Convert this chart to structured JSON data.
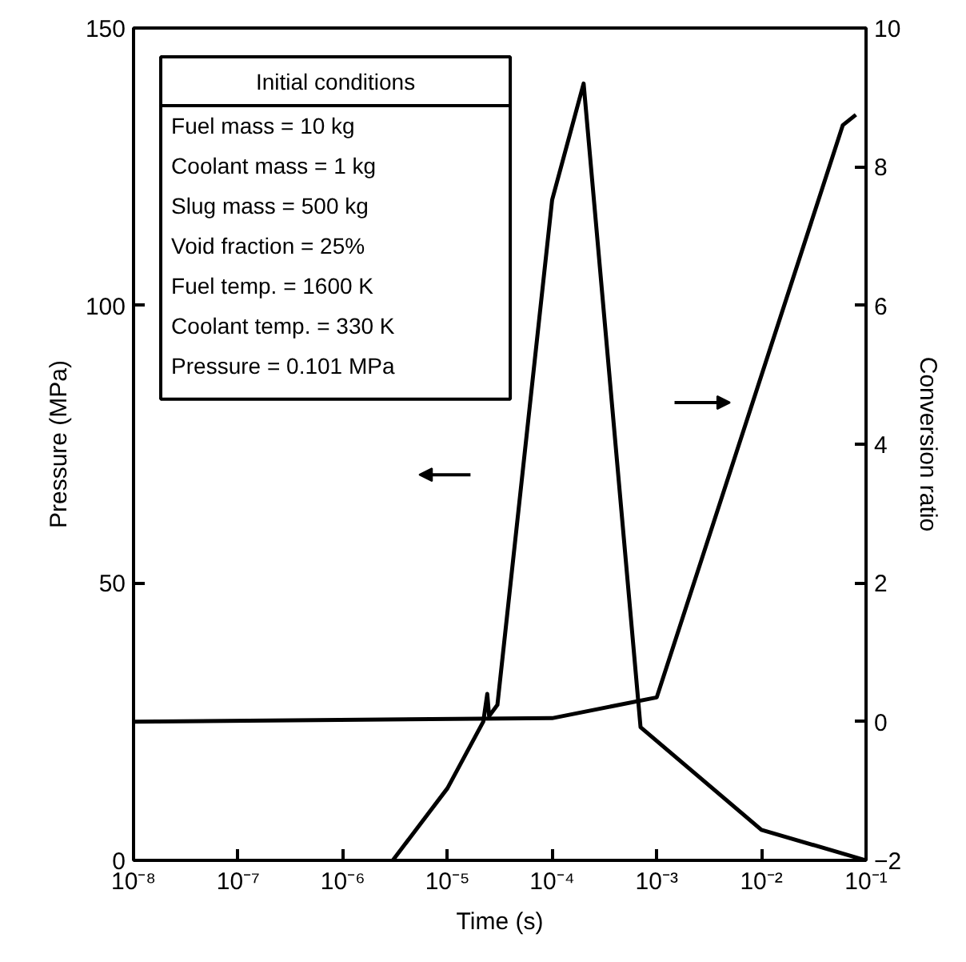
{
  "chart_data": {
    "type": "line",
    "xlabel": "Time (s)",
    "ylabel": "Pressure (MPa)",
    "y2label": "Conversion ratio",
    "log": "x",
    "grid": false,
    "marker": "none",
    "line_style": "solid",
    "xlim": [
      1e-08,
      0.1
    ],
    "xticks": [
      {
        "value": 1e-08,
        "label": "10⁻⁸"
      },
      {
        "value": 1e-07,
        "label": "10⁻⁷"
      },
      {
        "value": 1e-06,
        "label": "10⁻⁶"
      },
      {
        "value": 1e-05,
        "label": "10⁻⁵"
      },
      {
        "value": 0.0001,
        "label": "10⁻⁴"
      },
      {
        "value": 0.001,
        "label": "10⁻³"
      },
      {
        "value": 0.01,
        "label": "10⁻²"
      },
      {
        "value": 0.1,
        "label": "10⁻¹"
      }
    ],
    "ylim": [
      0,
      150
    ],
    "yticks": [
      0,
      50,
      100,
      150
    ],
    "y2lim": [
      -2,
      10
    ],
    "y2ticks": [
      -2,
      0,
      2,
      4,
      6,
      8,
      10
    ],
    "series": [
      {
        "color": "#000000",
        "x": [
          3e-06,
          1e-05,
          2.2e-05,
          2.4e-05,
          2.5e-05,
          3e-05,
          0.0001,
          0.0002,
          0.0007,
          0.01,
          0.1
        ],
        "values": [
          0,
          13,
          25,
          30,
          26,
          28,
          119,
          140,
          24,
          5.5,
          0
        ]
      },
      {
        "color": "#000000",
        "axis": "y2",
        "x": [
          1e-08,
          0.0001,
          0.001,
          0.06,
          0.08
        ],
        "values": [
          0,
          0.05,
          0.35,
          8.6,
          8.75
        ]
      }
    ],
    "annotations": [
      "Initial conditions",
      "Fuel mass = 10 kg",
      "Coolant mass = 1 kg",
      "Slug mass = 500 kg",
      "Void fraction = 25%",
      "Fuel temp. = 1600 K",
      "Coolant temp. = 330 K",
      "Pressure = 0.101 MPa"
    ]
  }
}
